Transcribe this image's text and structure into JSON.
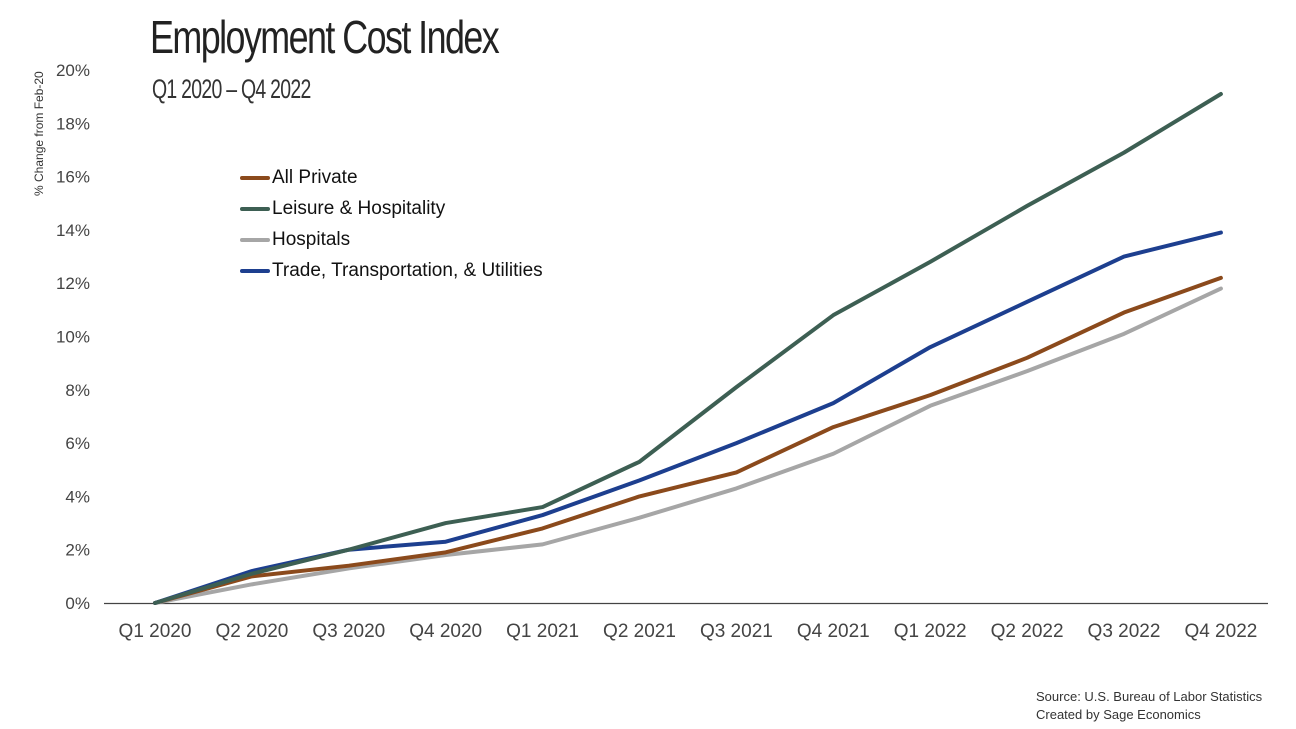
{
  "header": {
    "title": "Employment Cost Index",
    "subtitle": "Q1 2020 – Q4 2022"
  },
  "source": {
    "line1": "Source: U.S. Bureau of Labor Statistics",
    "line2": "Created by Sage Economics"
  },
  "chart_data": {
    "type": "line",
    "title": "Employment Cost Index",
    "subtitle": "Q1 2020 – Q4 2022",
    "xlabel": "",
    "ylabel": "% Change from Feb-20",
    "ylim": [
      0,
      20
    ],
    "yticks": [
      "0%",
      "2%",
      "4%",
      "6%",
      "8%",
      "10%",
      "12%",
      "14%",
      "16%",
      "18%",
      "20%"
    ],
    "grid": false,
    "legend_position": "upper-left",
    "categories": [
      "Q1 2020",
      "Q2 2020",
      "Q3 2020",
      "Q4 2020",
      "Q1 2021",
      "Q2 2021",
      "Q3 2021",
      "Q4 2021",
      "Q1 2022",
      "Q2 2022",
      "Q3 2022",
      "Q4 2022"
    ],
    "series": [
      {
        "name": "All Private",
        "color": "#8B4A1C",
        "values": [
          0,
          1.0,
          1.4,
          1.9,
          2.8,
          4.0,
          4.9,
          6.6,
          7.8,
          9.2,
          10.9,
          12.2
        ]
      },
      {
        "name": "Leisure & Hospitality",
        "color": "#3D5F53",
        "values": [
          0,
          1.1,
          2.0,
          3.0,
          3.6,
          5.3,
          8.1,
          10.8,
          12.8,
          14.9,
          16.9,
          19.1
        ]
      },
      {
        "name": "Hospitals",
        "color": "#A6A6A6",
        "values": [
          0,
          0.7,
          1.3,
          1.8,
          2.2,
          3.2,
          4.3,
          5.6,
          7.4,
          8.7,
          10.1,
          11.8
        ]
      },
      {
        "name": "Trade, Transportation, & Utilities",
        "color": "#1D3F8F",
        "values": [
          0,
          1.2,
          2.0,
          2.3,
          3.3,
          4.6,
          6.0,
          7.5,
          9.6,
          11.3,
          13.0,
          13.9
        ]
      }
    ]
  }
}
